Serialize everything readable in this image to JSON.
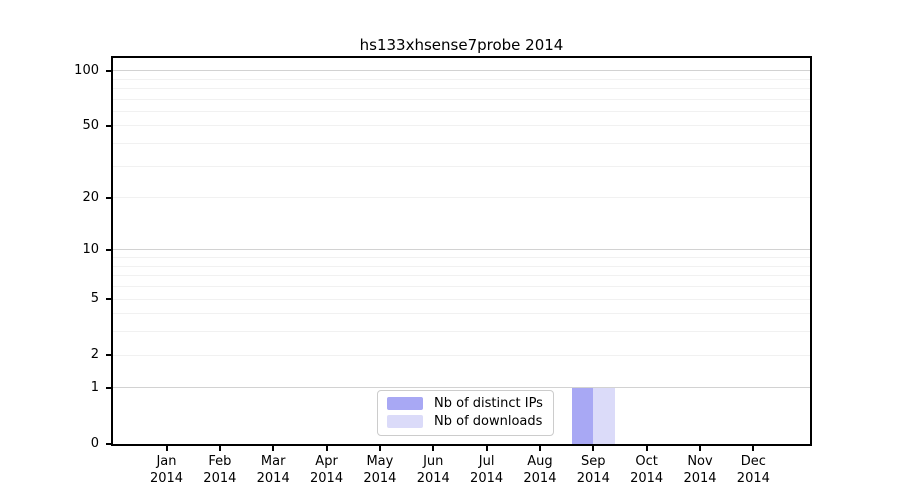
{
  "title": "hs133xhsense7probe 2014",
  "chart_data": {
    "type": "bar",
    "title": "hs133xhsense7probe 2014",
    "categories": [
      "Jan 2014",
      "Feb 2014",
      "Mar 2014",
      "Apr 2014",
      "May 2014",
      "Jun 2014",
      "Jul 2014",
      "Aug 2014",
      "Sep 2014",
      "Oct 2014",
      "Nov 2014",
      "Dec 2014"
    ],
    "series": [
      {
        "name": "Nb of distinct IPs",
        "color": "#a8a8f4",
        "values": [
          0,
          0,
          0,
          0,
          0,
          0,
          0,
          0,
          1,
          0,
          0,
          0
        ]
      },
      {
        "name": "Nb of downloads",
        "color": "#dbdbf9",
        "values": [
          0,
          0,
          0,
          0,
          0,
          0,
          0,
          0,
          1,
          0,
          0,
          0
        ]
      }
    ],
    "xlabel": "",
    "ylabel": "",
    "yscale": "log1p",
    "ylim": [
      0,
      117
    ],
    "yticks": [
      0,
      1,
      2,
      5,
      10,
      20,
      50,
      100
    ],
    "major_gridlines": [
      1,
      10,
      100
    ],
    "minor_gridlines": [
      2,
      3,
      4,
      5,
      6,
      7,
      8,
      9,
      20,
      30,
      40,
      50,
      60,
      70,
      80,
      90
    ],
    "grid_color_major": "#d2d2d2",
    "grid_color_minor": "#f1f1f1",
    "bar_group_month": "Sep 2014",
    "legend_position": "lower center",
    "background": "#ffffff",
    "spine_color": "#000000"
  }
}
